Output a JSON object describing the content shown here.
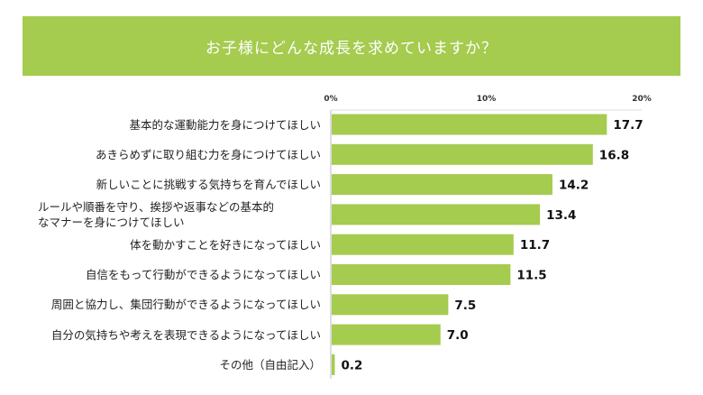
{
  "chart_data": {
    "type": "bar",
    "orientation": "horizontal",
    "title": "お子様にどんな成長を求めていますか？",
    "categories": [
      "基本的な運動能力を身につけてほしい",
      "あきらめずに取り組む力を身につけてほしい",
      "新しいことに挑戦する気持ちを育んでほしい",
      "ルールや順番を守り、挨拶や返事などの基本的\nなマナーを身につけてほしい",
      "体を動かすことを好きになってほしい",
      "自信をもって行動ができるようになってほしい",
      "周囲と協力し、集団行動ができるようになってほしい",
      "自分の気持ちや考えを表現できるようになってほしい",
      "その他（自由記入）"
    ],
    "values": [
      17.7,
      16.8,
      14.2,
      13.4,
      11.7,
      11.5,
      7.5,
      7.0,
      0.2
    ],
    "value_labels": [
      "17.7",
      "16.8",
      "14.2",
      "13.4",
      "11.7",
      "11.5",
      "7.5",
      "7.0",
      "0.2"
    ],
    "xlim": [
      0,
      20
    ],
    "ticks": [
      "0%",
      "10%",
      "20%"
    ],
    "tick_values": [
      0,
      10,
      20
    ],
    "grid": false,
    "bar_color": "#a5cb4f",
    "banner_color": "#a5cb4f"
  }
}
